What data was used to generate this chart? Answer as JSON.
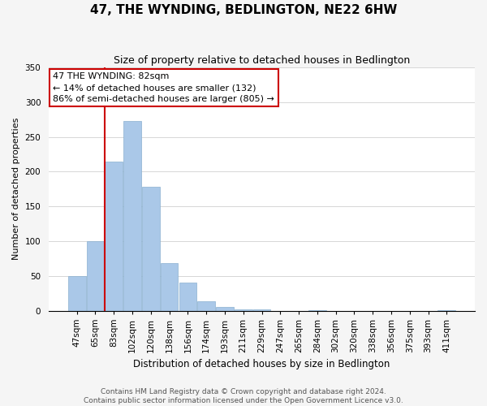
{
  "title": "47, THE WYNDING, BEDLINGTON, NE22 6HW",
  "subtitle": "Size of property relative to detached houses in Bedlington",
  "xlabel": "Distribution of detached houses by size in Bedlington",
  "ylabel": "Number of detached properties",
  "categories": [
    "47sqm",
    "65sqm",
    "83sqm",
    "102sqm",
    "120sqm",
    "138sqm",
    "156sqm",
    "174sqm",
    "193sqm",
    "211sqm",
    "229sqm",
    "247sqm",
    "265sqm",
    "284sqm",
    "302sqm",
    "320sqm",
    "338sqm",
    "356sqm",
    "375sqm",
    "393sqm",
    "411sqm"
  ],
  "values": [
    50,
    100,
    215,
    273,
    178,
    68,
    40,
    14,
    5,
    2,
    2,
    0,
    0,
    1,
    0,
    0,
    0,
    0,
    0,
    0,
    1
  ],
  "bar_color": "#aac8e8",
  "highlight_line_color": "#cc0000",
  "annotation_title": "47 THE WYNDING: 82sqm",
  "annotation_line1": "← 14% of detached houses are smaller (132)",
  "annotation_line2": "86% of semi-detached houses are larger (805) →",
  "annotation_box_color": "#ffffff",
  "annotation_box_edge_color": "#cc0000",
  "ylim": [
    0,
    350
  ],
  "yticks": [
    0,
    50,
    100,
    150,
    200,
    250,
    300,
    350
  ],
  "footer_line1": "Contains HM Land Registry data © Crown copyright and database right 2024.",
  "footer_line2": "Contains public sector information licensed under the Open Government Licence v3.0.",
  "background_color": "#f5f5f5",
  "plot_background_color": "#ffffff",
  "grid_color": "#d0d0d0",
  "title_fontsize": 11,
  "subtitle_fontsize": 9,
  "xlabel_fontsize": 8.5,
  "ylabel_fontsize": 8,
  "tick_fontsize": 7.5,
  "annotation_fontsize": 8,
  "footer_fontsize": 6.5
}
